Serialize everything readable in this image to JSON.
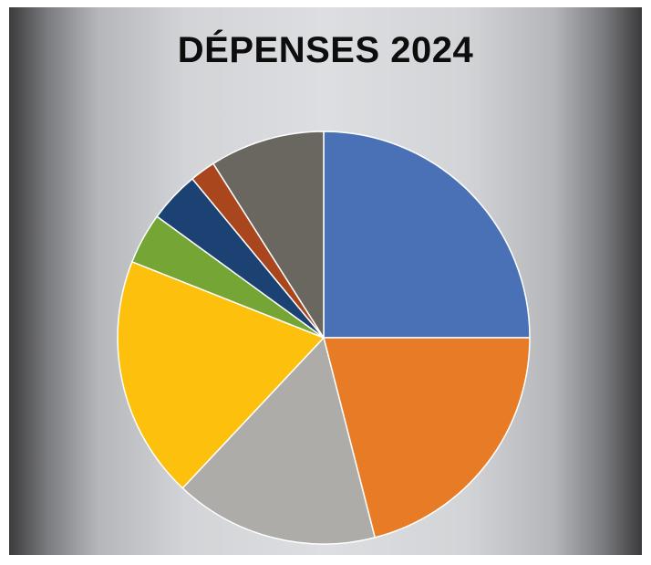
{
  "chart_data": {
    "type": "pie",
    "title": "DÉPENSES 2024",
    "legend": false,
    "start_angle_deg": 0,
    "direction": "clockwise",
    "slices": [
      {
        "value": 25,
        "color": "#4a70b5"
      },
      {
        "value": 21,
        "color": "#e87b26"
      },
      {
        "value": 16,
        "color": "#aeaca8"
      },
      {
        "value": 19,
        "color": "#fcc00d"
      },
      {
        "value": 4,
        "color": "#74a535"
      },
      {
        "value": 4,
        "color": "#1c4173"
      },
      {
        "value": 2,
        "color": "#a9461e"
      },
      {
        "value": 9,
        "color": "#6a6760"
      }
    ]
  }
}
